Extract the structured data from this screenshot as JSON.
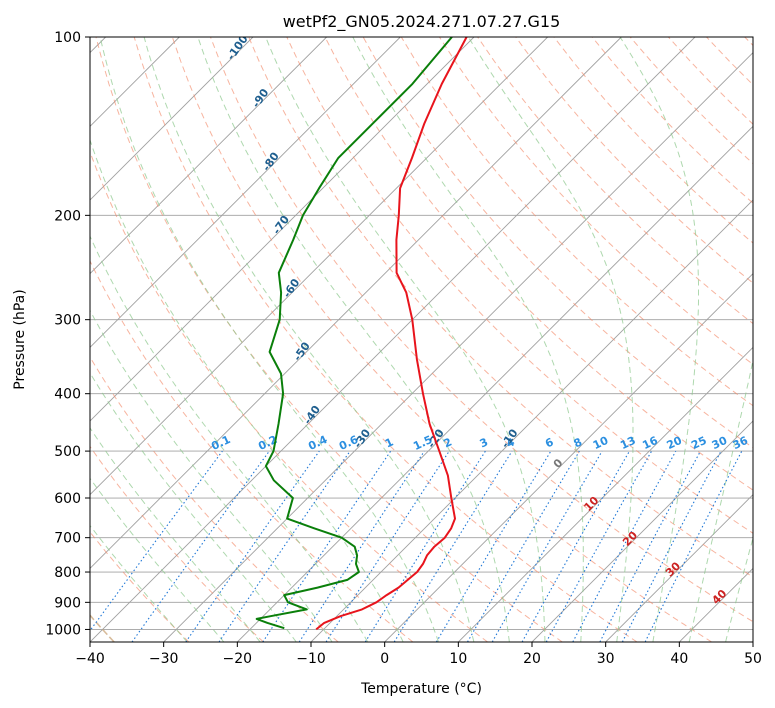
{
  "chart_data": {
    "type": "line",
    "subtype": "skew-T log-P diagram",
    "title": "wetPf2_GN05.2024.271.07.27.G15",
    "xlabel": "Temperature (°C)",
    "ylabel": "Pressure (hPa)",
    "xlim": [
      -40,
      50
    ],
    "ylim": [
      1050,
      100
    ],
    "y_scale": "log",
    "grid": true,
    "x_ticks": [
      "−40",
      "−30",
      "−20",
      "−10",
      "0",
      "10",
      "20",
      "30",
      "40",
      "50"
    ],
    "y_ticks": [
      "100",
      "200",
      "300",
      "400",
      "500",
      "600",
      "700",
      "800",
      "900",
      "1000"
    ],
    "series": [
      {
        "color": "#e8141c",
        "points": [
          [
            1000,
            -11.0
          ],
          [
            975,
            -10.8
          ],
          [
            950,
            -9.5
          ],
          [
            925,
            -7.5
          ],
          [
            900,
            -6.5
          ],
          [
            875,
            -6.1
          ],
          [
            850,
            -5.5
          ],
          [
            825,
            -5.3
          ],
          [
            800,
            -5.1
          ],
          [
            775,
            -5.4
          ],
          [
            750,
            -6.0
          ],
          [
            725,
            -6.2
          ],
          [
            700,
            -6.0
          ],
          [
            675,
            -6.4
          ],
          [
            650,
            -7.2
          ],
          [
            600,
            -10.5
          ],
          [
            550,
            -14.0
          ],
          [
            500,
            -18.5
          ],
          [
            450,
            -23.5
          ],
          [
            400,
            -28.5
          ],
          [
            350,
            -34.0
          ],
          [
            300,
            -40.0
          ],
          [
            270,
            -44.5
          ],
          [
            250,
            -48.5
          ],
          [
            220,
            -53.0
          ],
          [
            200,
            -56.0
          ],
          [
            180,
            -59.5
          ],
          [
            160,
            -62.0
          ],
          [
            140,
            -65.0
          ],
          [
            120,
            -68.0
          ],
          [
            100,
            -71.0
          ]
        ]
      },
      {
        "color": "#0a7f0a",
        "points": [
          [
            995,
            -15.5
          ],
          [
            975,
            -18.5
          ],
          [
            960,
            -20.5
          ],
          [
            950,
            -19.0
          ],
          [
            925,
            -15.0
          ],
          [
            900,
            -18.5
          ],
          [
            875,
            -20.0
          ],
          [
            850,
            -16.5
          ],
          [
            825,
            -13.5
          ],
          [
            800,
            -13.0
          ],
          [
            775,
            -14.5
          ],
          [
            750,
            -15.5
          ],
          [
            725,
            -17.0
          ],
          [
            700,
            -20.0
          ],
          [
            675,
            -25.0
          ],
          [
            650,
            -30.0
          ],
          [
            600,
            -32.0
          ],
          [
            560,
            -37.0
          ],
          [
            530,
            -40.0
          ],
          [
            500,
            -41.0
          ],
          [
            450,
            -44.0
          ],
          [
            400,
            -47.5
          ],
          [
            370,
            -50.5
          ],
          [
            340,
            -55.0
          ],
          [
            300,
            -58.0
          ],
          [
            270,
            -61.5
          ],
          [
            250,
            -64.5
          ],
          [
            220,
            -67.0
          ],
          [
            200,
            -69.0
          ],
          [
            180,
            -70.5
          ],
          [
            160,
            -72.0
          ],
          [
            140,
            -72.0
          ],
          [
            120,
            -72.0
          ],
          [
            100,
            -73.0
          ]
        ]
      }
    ],
    "dry_adiabat_labels": [
      "-100",
      "-90",
      "-80",
      "-70",
      "-60",
      "-50",
      "-40",
      "-30",
      "-20",
      "-10"
    ],
    "moist_adiabat_labels": [
      "0",
      "10",
      "20",
      "30",
      "40"
    ],
    "mixing_ratio_labels": [
      "0.1",
      "0.2",
      "0.4",
      "0.6",
      "1",
      "1.5",
      "2",
      "3",
      "4",
      "6",
      "8",
      "10",
      "13",
      "16",
      "20",
      "25",
      "30",
      "36"
    ],
    "colors": {
      "isotherm": "#a0a0a0",
      "dry_adiabat": "#f28c6c",
      "moist_adiabat": "#8cc88c",
      "mixing_ratio": "#1f77d6",
      "dry_label": "#1f5f8f",
      "moist_label": "#cc2222",
      "mixing_label": "#2b8fe0",
      "bounding": "#c8a070"
    }
  }
}
